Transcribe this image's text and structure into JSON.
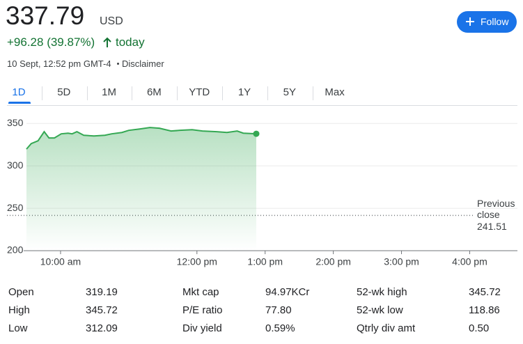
{
  "header": {
    "price": "337.79",
    "currency": "USD",
    "change": "+96.28 (39.87%)",
    "period": "today",
    "timestamp": "10 Sept, 12:52 pm GMT-4",
    "disclaimer": "Disclaimer"
  },
  "follow_button": "Follow",
  "tabs": {
    "items": [
      "1D",
      "5D",
      "1M",
      "6M",
      "YTD",
      "1Y",
      "5Y",
      "Max"
    ],
    "selected": 0
  },
  "chart_data": {
    "type": "area",
    "color": "#34a853",
    "x": [
      9.5,
      9.57,
      9.67,
      9.76,
      9.83,
      9.91,
      10.01,
      10.11,
      10.17,
      10.24,
      10.34,
      10.49,
      10.65,
      10.75,
      10.9,
      11.0,
      11.16,
      11.31,
      11.45,
      11.62,
      11.75,
      11.93,
      12.08,
      12.29,
      12.44,
      12.59,
      12.68,
      12.87
    ],
    "values": [
      319.7,
      326.2,
      329.5,
      340.2,
      332.8,
      332.8,
      337.7,
      338.5,
      337.7,
      340.2,
      336,
      335.2,
      336,
      337.7,
      339.3,
      341.8,
      343.4,
      345.1,
      344.3,
      341,
      341.8,
      342.6,
      341,
      340.2,
      339.3,
      341,
      338.5,
      337.79
    ],
    "xlim": [
      9.5,
      16.7
    ],
    "ylim": [
      200,
      360
    ],
    "xticks": [
      {
        "value": 10,
        "label": "10:00 am"
      },
      {
        "value": 12,
        "label": "12:00 pm"
      },
      {
        "value": 13,
        "label": "1:00 pm"
      },
      {
        "value": 14,
        "label": "2:00 pm"
      },
      {
        "value": 15,
        "label": "3:00 pm"
      },
      {
        "value": 16,
        "label": "4:00 pm"
      }
    ],
    "yticks": [
      200,
      250,
      300,
      350
    ],
    "grid": true,
    "reference_line": {
      "label": "Previous close",
      "value": 241.51
    }
  },
  "stats": {
    "rows": [
      [
        [
          "Open",
          "319.19"
        ],
        [
          "Mkt cap",
          "94.97KCr"
        ],
        [
          "52-wk high",
          "345.72"
        ]
      ],
      [
        [
          "High",
          "345.72"
        ],
        [
          "P/E ratio",
          "77.80"
        ],
        [
          "52-wk low",
          "118.86"
        ]
      ],
      [
        [
          "Low",
          "312.09"
        ],
        [
          "Div yield",
          "0.59%"
        ],
        [
          "Qtrly div amt",
          "0.50"
        ]
      ]
    ]
  }
}
